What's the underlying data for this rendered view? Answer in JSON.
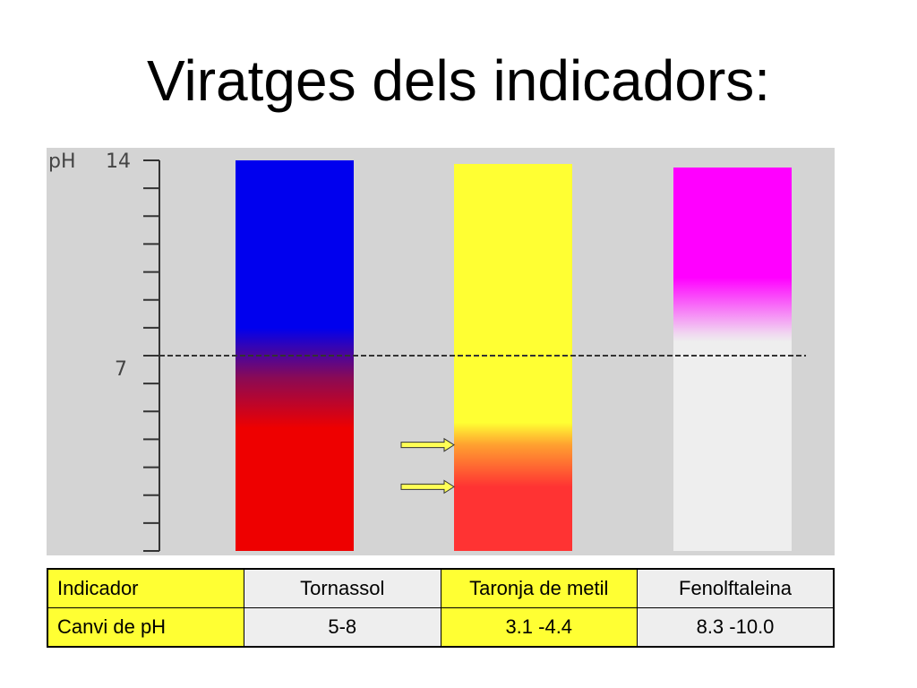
{
  "title": "Viratges dels indicadors:",
  "scale": {
    "unit_label": "pH",
    "top_label": "14",
    "mid_label": "7",
    "min": 0,
    "max": 14,
    "neutral": 7
  },
  "columns": [
    {
      "name": "Tornassol",
      "range": [
        5,
        8
      ],
      "stops": [
        {
          "ph": 14,
          "color": "#0000ee"
        },
        {
          "ph": 8,
          "color": "#0000ee"
        },
        {
          "ph": 6.2,
          "color": "#8a0a55"
        },
        {
          "ph": 4.4,
          "color": "#ee0000"
        },
        {
          "ph": 0,
          "color": "#ee0000"
        }
      ]
    },
    {
      "name": "Taronja de metil",
      "range": [
        3.1,
        4.4
      ],
      "stops": [
        {
          "ph": 14,
          "color": "#ffff33"
        },
        {
          "ph": 4.6,
          "color": "#ffff33"
        },
        {
          "ph": 3.8,
          "color": "#ffa030"
        },
        {
          "ph": 2.3,
          "color": "#ff3333"
        },
        {
          "ph": 0,
          "color": "#ff3333"
        }
      ]
    },
    {
      "name": "Fenolftaleina",
      "range": [
        8.3,
        10.0
      ],
      "stops": [
        {
          "ph": 14,
          "color": "#ff00ff"
        },
        {
          "ph": 9.8,
          "color": "#ff00ff"
        },
        {
          "ph": 7.8,
          "color": "#f1d6f1"
        },
        {
          "ph": 7.5,
          "color": "#eeeeee"
        },
        {
          "ph": 0,
          "color": "#eeeeee"
        }
      ]
    }
  ],
  "arrow_markers_ph": [
    3.8,
    2.3
  ],
  "colors": {
    "panel_bg": "#d4d4d4",
    "arrow_fill": "#ffff55"
  },
  "table": {
    "header": {
      "label": "Indicador",
      "values": [
        "Tornassol",
        "Taronja de metil",
        "Fenolftaleina"
      ]
    },
    "row": {
      "label": "Canvi de pH",
      "values": [
        "5-8",
        "3.1 -4.4",
        "8.3 -10.0"
      ]
    }
  }
}
